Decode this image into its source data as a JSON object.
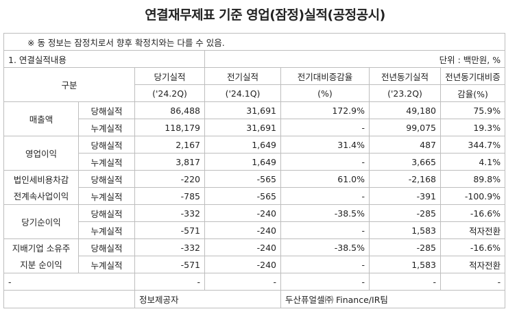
{
  "title": "연결재무제표 기준 영업(잠정)실적(공정공시)",
  "note": "※ 동 정보는 잠정치로서 향후 확정치와는 다를 수 있음.",
  "section": "1. 연결실적내용",
  "unit": "단위 : 백만원, %",
  "headers": {
    "category": "구분",
    "current": "당기실적",
    "current_period": "('24.2Q)",
    "previous": "전기실적",
    "previous_period": "('24.1Q)",
    "qoq": "전기대비증감율",
    "qoq_unit": "(%)",
    "yoy_prev": "전년동기실적",
    "yoy_prev_period": "('23.2Q)",
    "yoy": "전년동기대비증",
    "yoy_unit": "감율(%)"
  },
  "rows": [
    {
      "group": "매출액",
      "type": "당해실적",
      "current": "86,488",
      "previous": "31,691",
      "qoq": "172.9%",
      "yoy_prev": "49,180",
      "yoy": "75.9%"
    },
    {
      "group": "",
      "type": "누계실적",
      "current": "118,179",
      "previous": "31,691",
      "qoq": "-",
      "yoy_prev": "99,075",
      "yoy": "19.3%"
    },
    {
      "group": "영업이익",
      "type": "당해실적",
      "current": "2,167",
      "previous": "1,649",
      "qoq": "31.4%",
      "yoy_prev": "487",
      "yoy": "344.7%"
    },
    {
      "group": "",
      "type": "누계실적",
      "current": "3,817",
      "previous": "1,649",
      "qoq": "-",
      "yoy_prev": "3,665",
      "yoy": "4.1%"
    },
    {
      "group": "법인세비용차감",
      "type": "당해실적",
      "current": "-220",
      "previous": "-565",
      "qoq": "61.0%",
      "yoy_prev": "-2,168",
      "yoy": "89.8%"
    },
    {
      "group": "전계속사업이익",
      "type": "누계실적",
      "current": "-785",
      "previous": "-565",
      "qoq": "-",
      "yoy_prev": "-391",
      "yoy": "-100.9%"
    },
    {
      "group": "당기순이익",
      "type": "당해실적",
      "current": "-332",
      "previous": "-240",
      "qoq": "-38.5%",
      "yoy_prev": "-285",
      "yoy": "-16.6%"
    },
    {
      "group": "",
      "type": "누계실적",
      "current": "-571",
      "previous": "-240",
      "qoq": "-",
      "yoy_prev": "1,583",
      "yoy": "적자전환"
    },
    {
      "group": "지배기업 소유주",
      "type": "당해실적",
      "current": "-332",
      "previous": "-240",
      "qoq": "-38.5%",
      "yoy_prev": "-285",
      "yoy": "-16.6%"
    },
    {
      "group": "지분 순이익",
      "type": "누계실적",
      "current": "-571",
      "previous": "-240",
      "qoq": "-",
      "yoy_prev": "1,583",
      "yoy": "적자전환"
    }
  ],
  "empty_row": {
    "c1": "-",
    "c2": "-",
    "c3": "-",
    "c4": "-",
    "c5": "-",
    "c6": "-"
  },
  "footer": {
    "provider_label": "정보제공자",
    "provider": "두산퓨얼셀㈜ Finance/IR팀"
  }
}
